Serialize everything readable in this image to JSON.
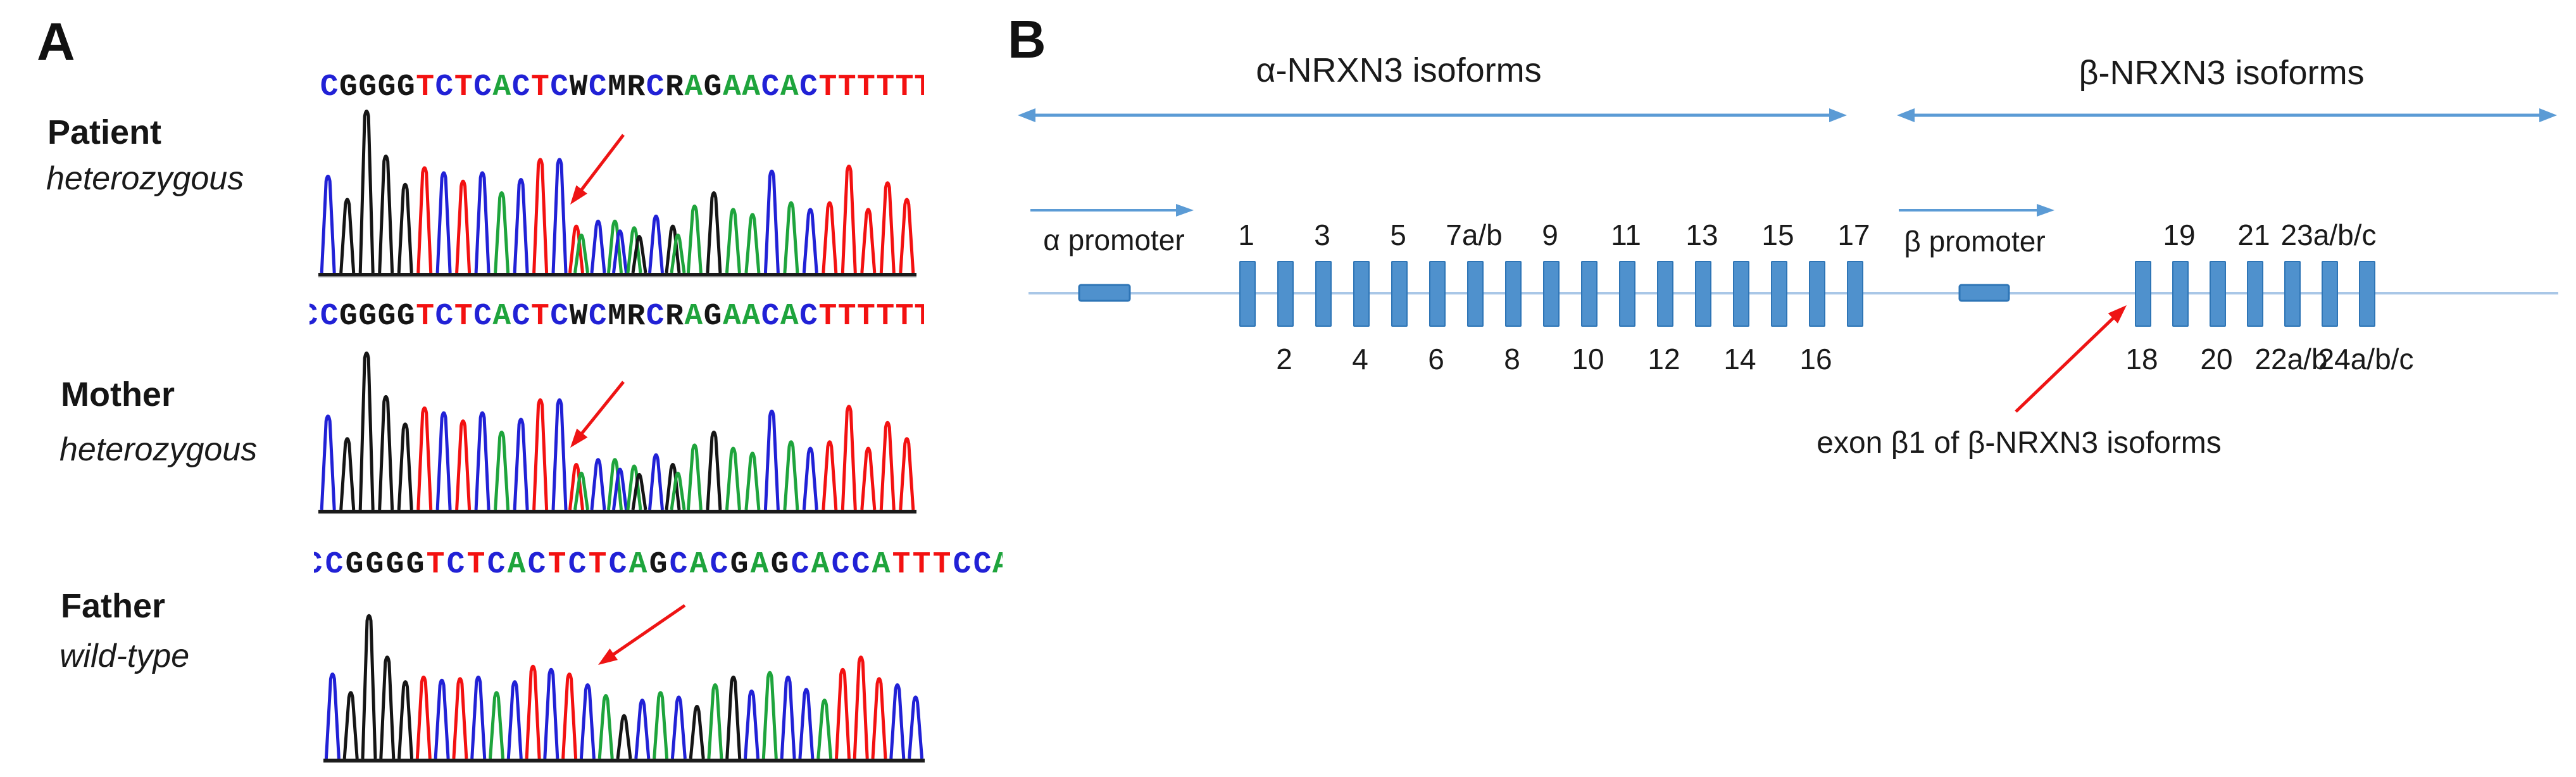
{
  "panel_a": {
    "label": "A",
    "base_colors": {
      "A": "#1ea43c",
      "C": "#2121d6",
      "G": "#151515",
      "T": "#f31111",
      "W": "#151515",
      "M": "#151515",
      "R": "#151515"
    },
    "traces": [
      {
        "name": "Patient",
        "genotype": "heterozygous",
        "sequence": "CGGGGTCTCACTCWCMRCRAGAACACTTTTT",
        "leading_partial": "",
        "trailing_partial": "T",
        "peaks": [
          [
            "C",
            0.6
          ],
          [
            "G",
            0.46
          ],
          [
            "G",
            0.99
          ],
          [
            "G",
            0.72
          ],
          [
            "G",
            0.55
          ],
          [
            "T",
            0.65
          ],
          [
            "C",
            0.62
          ],
          [
            "T",
            0.57
          ],
          [
            "C",
            0.62
          ],
          [
            "A",
            0.5
          ],
          [
            "C",
            0.58
          ],
          [
            "T",
            0.7
          ],
          [
            "C",
            0.7
          ],
          [
            "W",
            0.3,
            "T",
            "A"
          ],
          [
            "C",
            0.33
          ],
          [
            "M",
            0.33,
            "A",
            "C"
          ],
          [
            "R",
            0.29,
            "A",
            "G"
          ],
          [
            "C",
            0.36
          ],
          [
            "R",
            0.3,
            "G",
            "A"
          ],
          [
            "A",
            0.42
          ],
          [
            "G",
            0.5
          ],
          [
            "A",
            0.4
          ],
          [
            "A",
            0.37
          ],
          [
            "C",
            0.63
          ],
          [
            "A",
            0.44
          ],
          [
            "C",
            0.4
          ],
          [
            "T",
            0.44
          ],
          [
            "T",
            0.66
          ],
          [
            "T",
            0.4
          ],
          [
            "T",
            0.56
          ],
          [
            "T",
            0.46
          ]
        ]
      },
      {
        "name": "Mother",
        "genotype": "heterozygous",
        "sequence": "CGGGGTCTCACTCWCMRCRAGAACACTTTTT",
        "leading_partial": "C",
        "trailing_partial": "T",
        "peaks": [
          [
            "C",
            0.6
          ],
          [
            "G",
            0.46
          ],
          [
            "G",
            0.99
          ],
          [
            "G",
            0.72
          ],
          [
            "G",
            0.55
          ],
          [
            "T",
            0.65
          ],
          [
            "C",
            0.62
          ],
          [
            "T",
            0.57
          ],
          [
            "C",
            0.62
          ],
          [
            "A",
            0.5
          ],
          [
            "C",
            0.58
          ],
          [
            "T",
            0.7
          ],
          [
            "C",
            0.7
          ],
          [
            "W",
            0.3,
            "T",
            "A"
          ],
          [
            "C",
            0.33
          ],
          [
            "M",
            0.33,
            "A",
            "C"
          ],
          [
            "R",
            0.29,
            "A",
            "G"
          ],
          [
            "C",
            0.36
          ],
          [
            "R",
            0.3,
            "G",
            "A"
          ],
          [
            "A",
            0.42
          ],
          [
            "G",
            0.5
          ],
          [
            "A",
            0.4
          ],
          [
            "A",
            0.37
          ],
          [
            "C",
            0.63
          ],
          [
            "A",
            0.44
          ],
          [
            "C",
            0.4
          ],
          [
            "T",
            0.44
          ],
          [
            "T",
            0.66
          ],
          [
            "T",
            0.4
          ],
          [
            "T",
            0.56
          ],
          [
            "T",
            0.46
          ]
        ]
      },
      {
        "name": "Father",
        "genotype": "wild-type",
        "sequence": "CGGGGTCTCACTCTCAGCACGAGCACCATTTCC",
        "leading_partial": "C",
        "trailing_partial": "A",
        "peaks": [
          [
            "C",
            0.57
          ],
          [
            "G",
            0.45
          ],
          [
            "G",
            0.95
          ],
          [
            "G",
            0.68
          ],
          [
            "G",
            0.52
          ],
          [
            "T",
            0.55
          ],
          [
            "C",
            0.53
          ],
          [
            "T",
            0.54
          ],
          [
            "C",
            0.55
          ],
          [
            "A",
            0.45
          ],
          [
            "C",
            0.52
          ],
          [
            "T",
            0.62
          ],
          [
            "C",
            0.6
          ],
          [
            "T",
            0.57
          ],
          [
            "C",
            0.5
          ],
          [
            "A",
            0.43
          ],
          [
            "G",
            0.3
          ],
          [
            "C",
            0.4
          ],
          [
            "A",
            0.45
          ],
          [
            "C",
            0.42
          ],
          [
            "G",
            0.36
          ],
          [
            "A",
            0.5
          ],
          [
            "G",
            0.55
          ],
          [
            "C",
            0.46
          ],
          [
            "A",
            0.58
          ],
          [
            "C",
            0.55
          ],
          [
            "C",
            0.47
          ],
          [
            "A",
            0.4
          ],
          [
            "T",
            0.6
          ],
          [
            "T",
            0.68
          ],
          [
            "T",
            0.54
          ],
          [
            "C",
            0.5
          ],
          [
            "C",
            0.42
          ]
        ]
      }
    ]
  },
  "panel_b": {
    "label": "B",
    "alpha_title": "α-NRXN3 isoforms",
    "beta_title": "β-NRXN3 isoforms",
    "alpha_promoter": "α promoter",
    "beta_promoter": "β promoter",
    "annotation": "exon β1 of β-NRXN3 isoforms",
    "alpha_exon_count": 17,
    "alpha_exon_labels": [
      {
        "text": "1",
        "row": "top",
        "slot": 0
      },
      {
        "text": "2",
        "row": "bottom",
        "slot": 1
      },
      {
        "text": "3",
        "row": "top",
        "slot": 2
      },
      {
        "text": "4",
        "row": "bottom",
        "slot": 3
      },
      {
        "text": "5",
        "row": "top",
        "slot": 4
      },
      {
        "text": "6",
        "row": "bottom",
        "slot": 5
      },
      {
        "text": "7a/b",
        "row": "top",
        "slot": 6
      },
      {
        "text": "8",
        "row": "bottom",
        "slot": 7
      },
      {
        "text": "9",
        "row": "top",
        "slot": 8
      },
      {
        "text": "10",
        "row": "bottom",
        "slot": 9
      },
      {
        "text": "11",
        "row": "top",
        "slot": 10
      },
      {
        "text": "12",
        "row": "bottom",
        "slot": 11
      },
      {
        "text": "13",
        "row": "top",
        "slot": 12
      },
      {
        "text": "14",
        "row": "bottom",
        "slot": 13
      },
      {
        "text": "15",
        "row": "top",
        "slot": 14
      },
      {
        "text": "16",
        "row": "bottom",
        "slot": 15
      },
      {
        "text": "17",
        "row": "top",
        "slot": 16
      }
    ],
    "beta_exon_count": 7,
    "beta_exon_labels": [
      {
        "text": "18",
        "row": "bottom",
        "slot": 0
      },
      {
        "text": "19",
        "row": "top",
        "slot": 1
      },
      {
        "text": "20",
        "row": "bottom",
        "slot": 2
      },
      {
        "text": "21",
        "row": "top",
        "slot": 3
      },
      {
        "text": "22a/b",
        "row": "bottom",
        "slot": 4
      },
      {
        "text": "23a/b/c",
        "row": "top",
        "slot": 5
      },
      {
        "text": "24a/b/c",
        "row": "bottom",
        "slot": 6
      }
    ],
    "colors": {
      "exon_fill": "#4f91cd",
      "exon_border": "#2e75b6",
      "gene_line": "#a9c7e7",
      "blue_arrow": "#5b9bd5",
      "red_arrow": "#ee1414"
    }
  }
}
